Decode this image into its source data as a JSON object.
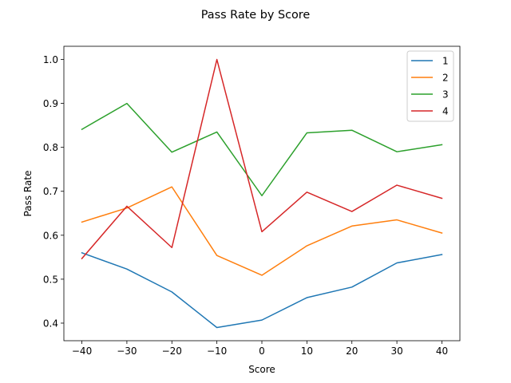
{
  "chart_data": {
    "type": "line",
    "title": "Pass Rate by Score",
    "xlabel": "Score",
    "ylabel": "Pass Rate",
    "x": [
      -40,
      -30,
      -20,
      -10,
      0,
      10,
      20,
      30,
      40
    ],
    "xticks": [
      "−40",
      "−30",
      "−20",
      "−10",
      "0",
      "10",
      "20",
      "30",
      "40"
    ],
    "yticks": [
      "0.4",
      "0.5",
      "0.6",
      "0.7",
      "0.8",
      "0.9",
      "1.0"
    ],
    "xlim": [
      -44,
      44
    ],
    "ylim": [
      0.36,
      1.03
    ],
    "grid": false,
    "legend_position": "top-right",
    "series": [
      {
        "name": "1",
        "color": "#1f77b4",
        "values": [
          0.56,
          0.523,
          0.471,
          0.39,
          0.407,
          0.458,
          0.482,
          0.537,
          0.556
        ]
      },
      {
        "name": "2",
        "color": "#ff7f0e",
        "values": [
          0.63,
          0.662,
          0.71,
          0.554,
          0.509,
          0.576,
          0.621,
          0.635,
          0.605
        ]
      },
      {
        "name": "3",
        "color": "#2ca02c",
        "values": [
          0.841,
          0.9,
          0.789,
          0.835,
          0.69,
          0.833,
          0.839,
          0.79,
          0.806
        ]
      },
      {
        "name": "4",
        "color": "#d62728",
        "values": [
          0.547,
          0.666,
          0.572,
          1.0,
          0.608,
          0.698,
          0.654,
          0.714,
          0.684
        ]
      }
    ]
  }
}
